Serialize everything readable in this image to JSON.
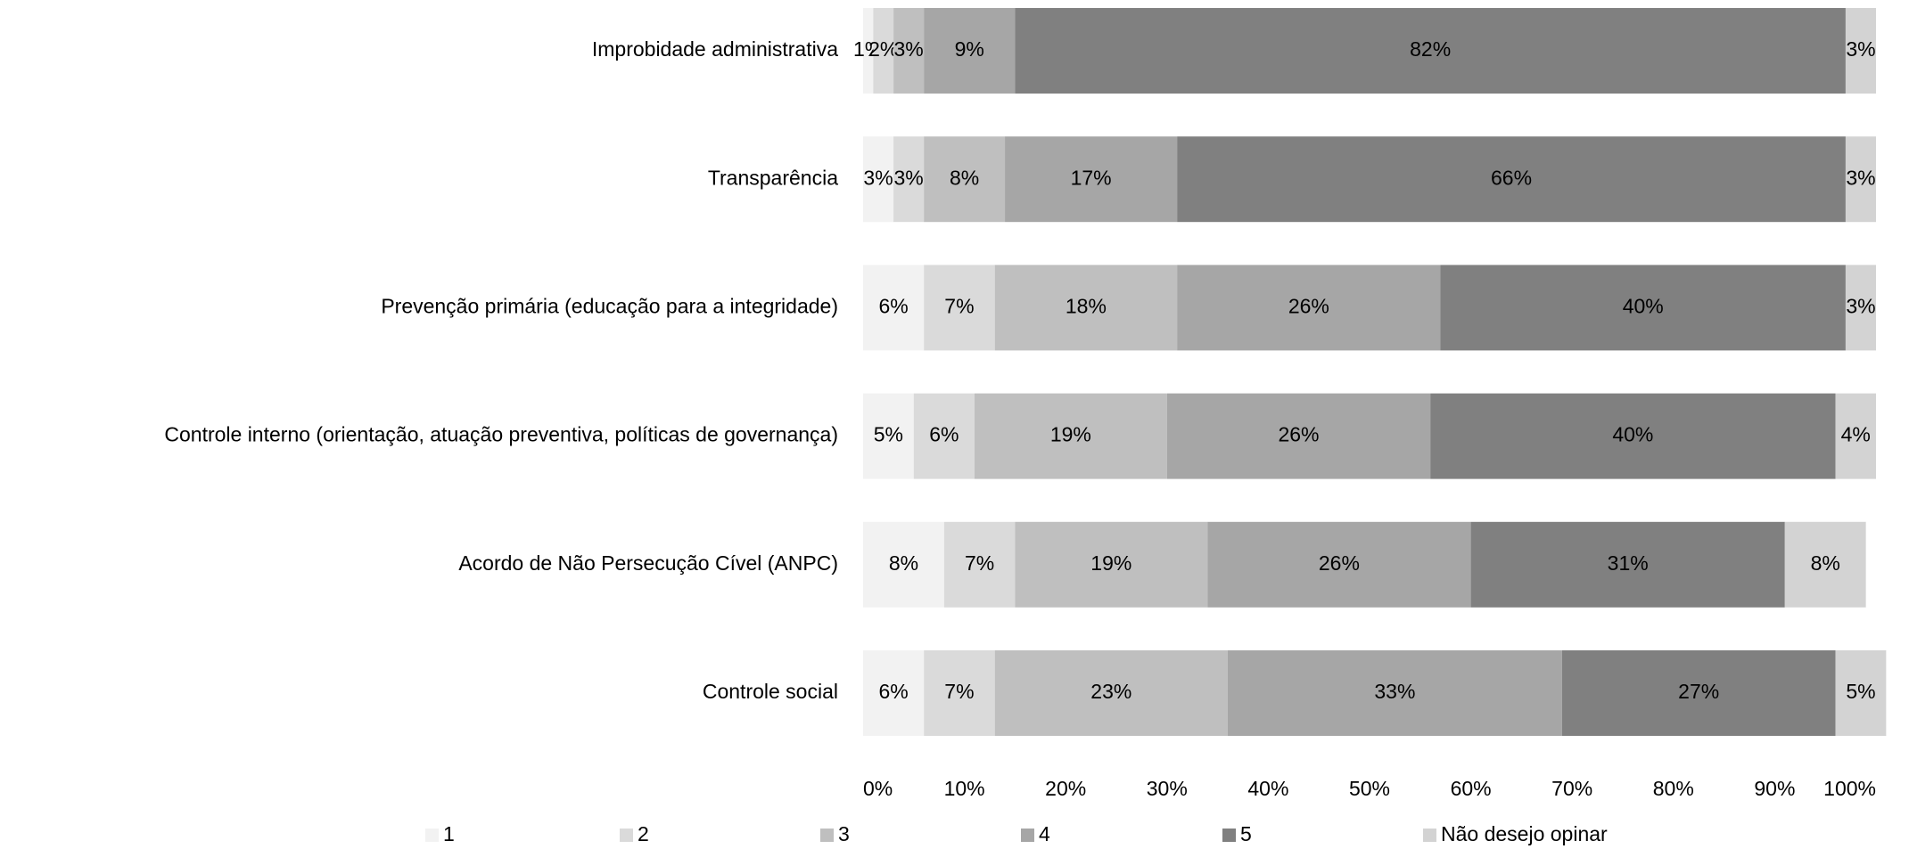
{
  "chart_data": {
    "type": "stacked-bar-horizontal",
    "categories": [
      "Improbidade administrativa",
      "Transparência",
      "Prevenção primária (educação para a integridade)",
      "Controle interno (orientação, atuação preventiva, políticas de governança)",
      "Acordo de Não Persecução Cível (ANPC)",
      "Controle social"
    ],
    "series": [
      {
        "name": "1",
        "color": "#f2f2f2",
        "values": [
          1,
          3,
          6,
          5,
          8,
          6
        ],
        "value_labels": [
          "1%",
          "3%",
          "6%",
          "5%",
          "8%",
          "6%"
        ]
      },
      {
        "name": "2",
        "color": "#dadada",
        "values": [
          2,
          3,
          7,
          6,
          7,
          7
        ],
        "value_labels": [
          "2%",
          "3%",
          "7%",
          "6%",
          "7%",
          "7%"
        ]
      },
      {
        "name": "3",
        "color": "#bfbfbf",
        "values": [
          3,
          8,
          18,
          19,
          19,
          23
        ],
        "value_labels": [
          "3%",
          "8%",
          "18%",
          "19%",
          "19%",
          "23%"
        ]
      },
      {
        "name": "4",
        "color": "#a6a6a6",
        "values": [
          9,
          17,
          26,
          26,
          26,
          33
        ],
        "value_labels": [
          "9%",
          "17%",
          "26%",
          "26%",
          "26%",
          "33%"
        ]
      },
      {
        "name": "5",
        "color": "#808080",
        "values": [
          82,
          66,
          40,
          40,
          31,
          27
        ],
        "value_labels": [
          "82%",
          "66%",
          "40%",
          "40%",
          "31%",
          "27%"
        ]
      },
      {
        "name": "Não desejo opinar",
        "color": "#d3d3d3",
        "values": [
          3,
          3,
          3,
          4,
          8,
          5
        ],
        "value_labels": [
          "3%",
          "3%",
          "3%",
          "4%",
          "8%",
          "5%"
        ]
      }
    ],
    "xlim": [
      0,
      100
    ],
    "xticks": [
      {
        "value": 0,
        "label": "0%"
      },
      {
        "value": 10,
        "label": "10%"
      },
      {
        "value": 20,
        "label": "20%"
      },
      {
        "value": 30,
        "label": "30%"
      },
      {
        "value": 40,
        "label": "40%"
      },
      {
        "value": 50,
        "label": "50%"
      },
      {
        "value": 60,
        "label": "60%"
      },
      {
        "value": 70,
        "label": "70%"
      },
      {
        "value": 80,
        "label": "80%"
      },
      {
        "value": 90,
        "label": "90%"
      },
      {
        "value": 100,
        "label": "100%"
      }
    ],
    "legend": "bottom"
  }
}
